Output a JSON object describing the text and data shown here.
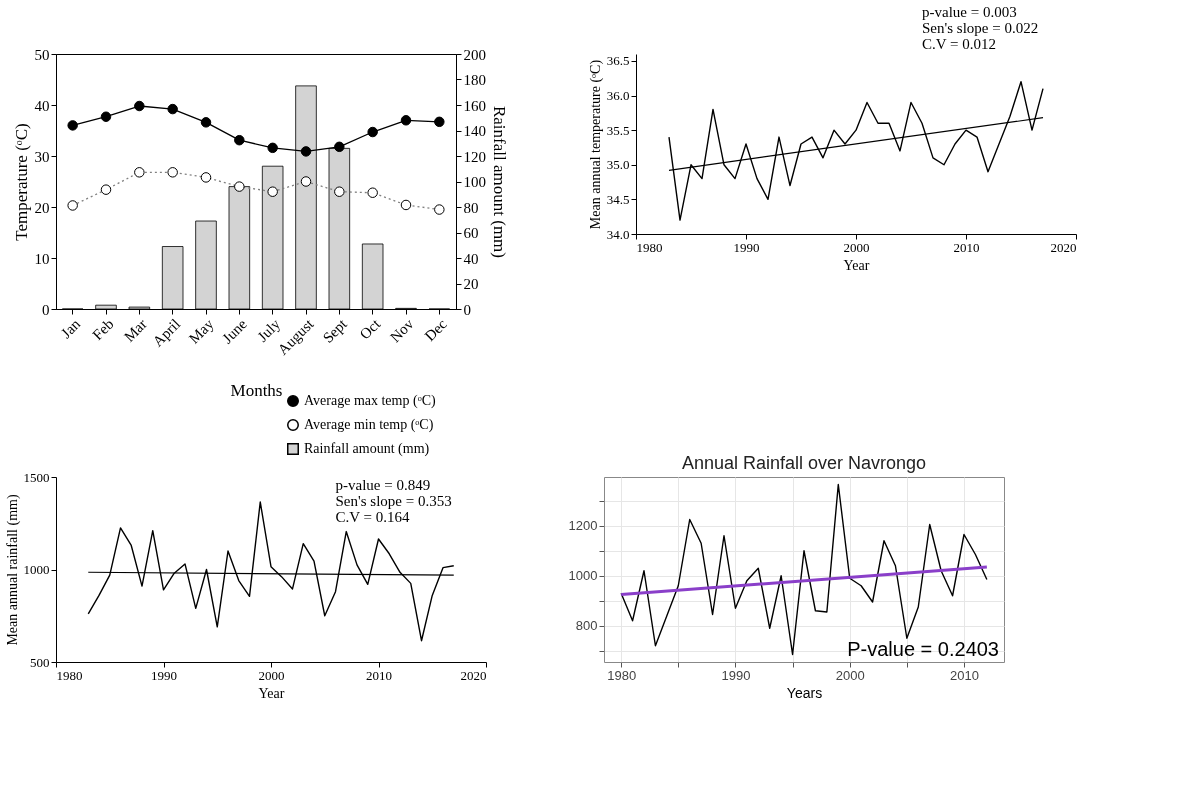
{
  "chart_data": [
    {
      "type": "bar",
      "categories": [
        "Jan",
        "Feb",
        "Mar",
        "April",
        "May",
        "June",
        "July",
        "August",
        "Sept",
        "Oct",
        "Nov",
        "Dec"
      ],
      "xlabel": "Months",
      "ylabel": "Temperature (ᵒC)",
      "y2label": "Rainfall amount (mm)",
      "ylim": [
        0,
        50
      ],
      "yticks": [
        0,
        10,
        20,
        30,
        40,
        50
      ],
      "y2lim": [
        0,
        200
      ],
      "y2ticks": [
        0,
        20,
        40,
        60,
        80,
        100,
        120,
        140,
        160,
        180,
        200
      ],
      "legend": "bottom right",
      "series": [
        {
          "name": "Average max temp (ᵒC)",
          "type": "line",
          "marker": "circle",
          "line_style": "solid",
          "color": "#000000",
          "values": [
            36.0,
            37.7,
            39.8,
            39.2,
            36.6,
            33.1,
            31.6,
            30.9,
            31.8,
            34.7,
            37.0,
            36.7
          ]
        },
        {
          "name": "Average min temp (ᵒC)",
          "type": "line",
          "marker": "circle",
          "line_style": "dotted",
          "color": "#808080",
          "values": [
            20.3,
            23.4,
            26.8,
            26.8,
            25.8,
            24.0,
            23.0,
            25.0,
            23.0,
            22.8,
            20.4,
            19.5
          ]
        },
        {
          "name": "Rainfall amount (mm)",
          "type": "bar",
          "axis": "y2",
          "color": "#d3d3d3",
          "values": [
            0,
            3,
            1.5,
            49,
            69,
            96,
            112,
            175,
            126,
            51,
            0.5,
            0
          ]
        }
      ]
    },
    {
      "type": "line",
      "xlabel": "Year",
      "ylabel": "Mean annual temperature (ᵒC)",
      "xlim": [
        1980,
        2020
      ],
      "xticks": [
        1980,
        1990,
        2000,
        2010,
        2020
      ],
      "ylim": [
        34,
        36.6
      ],
      "yticks": [
        {
          "value": 34,
          "label": "34.0"
        },
        {
          "value": 34.5,
          "label": "34.5"
        },
        {
          "value": 35,
          "label": "35.0"
        },
        {
          "value": 35.5,
          "label": "35.5"
        },
        {
          "value": 36,
          "label": "36.0"
        },
        {
          "value": 36.5,
          "label": "36.5"
        }
      ],
      "x": [
        1983,
        1984,
        1985,
        1986,
        1987,
        1988,
        1989,
        1990,
        1991,
        1992,
        1993,
        1994,
        1995,
        1996,
        1997,
        1998,
        1999,
        2000,
        2001,
        2002,
        2003,
        2004,
        2005,
        2006,
        2007,
        2008,
        2009,
        2010,
        2011,
        2012,
        2013,
        2014,
        2015,
        2016,
        2017
      ],
      "series": [
        {
          "color": "#000000",
          "values": [
            35.4,
            34.2,
            35.0,
            34.8,
            35.8,
            35.0,
            34.8,
            35.3,
            34.8,
            34.5,
            35.4,
            34.7,
            35.3,
            35.4,
            35.1,
            35.5,
            35.3,
            35.5,
            35.9,
            35.6,
            35.6,
            35.2,
            35.9,
            35.6,
            35.1,
            35.0,
            35.3,
            35.5,
            35.4,
            34.9,
            35.3,
            35.7,
            36.2,
            35.5,
            36.1
          ]
        },
        {
          "type": "line",
          "color": "#000000",
          "x": [
            1983,
            2017
          ],
          "values": [
            34.92,
            35.68
          ]
        }
      ],
      "annotations": [
        "p-value = 0.003",
        "Sen's slope = 0.022",
        "C.V = 0.012"
      ]
    },
    {
      "type": "line",
      "xlabel": "Year",
      "ylabel": "Mean annual rainfall (mm)",
      "xlim": [
        1980,
        2020
      ],
      "xticks": [
        1980,
        1990,
        2000,
        2010,
        2020
      ],
      "ylim": [
        500,
        1500
      ],
      "yticks": [
        500,
        1000,
        1500
      ],
      "x": [
        1983,
        1984,
        1985,
        1986,
        1987,
        1988,
        1989,
        1990,
        1991,
        1992,
        1993,
        1994,
        1995,
        1996,
        1997,
        1998,
        1999,
        2000,
        2001,
        2002,
        2003,
        2004,
        2005,
        2006,
        2007,
        2008,
        2009,
        2010,
        2011,
        2012,
        2013,
        2014,
        2015,
        2016,
        2017
      ],
      "series": [
        {
          "color": "#000000",
          "values": [
            760,
            860,
            970,
            1225,
            1130,
            910,
            1210,
            890,
            980,
            1030,
            790,
            1000,
            690,
            1100,
            940,
            855,
            1365,
            1015,
            960,
            895,
            1140,
            1045,
            750,
            880,
            1205,
            1025,
            920,
            1165,
            1085,
            985,
            925,
            615,
            860,
            1010,
            1020
          ]
        },
        {
          "type": "line",
          "color": "#000000",
          "x": [
            1983,
            2017
          ],
          "values": [
            985,
            970
          ]
        }
      ],
      "annotations": [
        "p-value = 0.849",
        "Sen's slope = 0.353",
        "C.V = 0.164"
      ]
    },
    {
      "type": "line",
      "title": "Annual Rainfall over Navrongo",
      "xlabel": "Years",
      "xlim": [
        1978.5,
        2013.5
      ],
      "xticks": [
        1980,
        {
          "value": 1985,
          "label": null
        },
        1990,
        {
          "value": 1995,
          "label": null
        },
        2000,
        {
          "value": 2005,
          "label": null
        },
        2010
      ],
      "ylim": [
        655,
        1395
      ],
      "yticks": [
        {
          "value": 700,
          "label": null
        },
        800,
        {
          "value": 900,
          "label": null
        },
        1000,
        {
          "value": 1100,
          "label": null
        },
        1200,
        {
          "value": 1300,
          "label": null
        }
      ],
      "grid": true,
      "x": [
        1980,
        1981,
        1982,
        1983,
        1984,
        1985,
        1986,
        1987,
        1988,
        1989,
        1990,
        1991,
        1992,
        1993,
        1994,
        1995,
        1996,
        1997,
        1998,
        1999,
        2000,
        2001,
        2002,
        2003,
        2004,
        2005,
        2006,
        2007,
        2008,
        2009,
        2010,
        2011,
        2012
      ],
      "series": [
        {
          "color": "#000000",
          "values": [
            930,
            820,
            1020,
            720,
            840,
            960,
            1225,
            1130,
            845,
            1160,
            870,
            980,
            1030,
            790,
            1000,
            685,
            1100,
            860,
            855,
            1365,
            990,
            960,
            895,
            1140,
            1040,
            750,
            875,
            1205,
            1020,
            920,
            1165,
            1085,
            985
          ]
        },
        {
          "type": "line",
          "color": "#8a3fc9",
          "x": [
            1980,
            2012
          ],
          "values": [
            925,
            1035
          ]
        }
      ],
      "annotations": [
        "P-value = 0.2403"
      ]
    }
  ]
}
